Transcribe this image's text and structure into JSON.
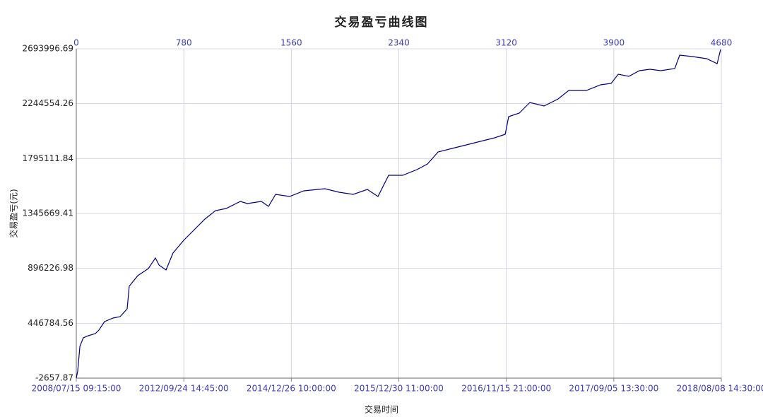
{
  "chart_data": {
    "type": "line",
    "title": "交易盈亏曲线图",
    "x_label": "交易时间",
    "y_label": "交易盈亏(元)",
    "xlim": [
      0,
      4680
    ],
    "xticks": [
      0,
      780,
      1560,
      2340,
      3120,
      3900,
      4680
    ],
    "x2ticks": [
      {
        "value": 0,
        "label": "2008/07/15 09:15:00"
      },
      {
        "value": 780,
        "label": "2012/09/24 14:45:00"
      },
      {
        "value": 1560,
        "label": "2014/12/26 10:00:00"
      },
      {
        "value": 2340,
        "label": "2015/12/30 11:00:00"
      },
      {
        "value": 3120,
        "label": "2016/11/15 21:00:00"
      },
      {
        "value": 3900,
        "label": "2017/09/05 13:30:00"
      },
      {
        "value": 4680,
        "label": "2018/08/08 14:30:00"
      }
    ],
    "ylim": [
      -2657.87,
      2693996.69
    ],
    "yticks": [
      -2657.87,
      446784.56,
      896226.98,
      1345669.41,
      1795111.84,
      2244554.26,
      2693996.69
    ],
    "grid": true,
    "series": [
      {
        "color": "#000080",
        "x": [
          0,
          10,
          26,
          51,
          87,
          138,
          164,
          205,
          267,
          318,
          369,
          384,
          446,
          523,
          574,
          600,
          651,
          702,
          779,
          856,
          933,
          1010,
          1087,
          1190,
          1241,
          1343,
          1395,
          1446,
          1548,
          1651,
          1804,
          1907,
          2009,
          2112,
          2189,
          2266,
          2368,
          2471,
          2548,
          2625,
          2727,
          2830,
          2932,
          3035,
          3112,
          3137,
          3214,
          3291,
          3394,
          3496,
          3573,
          3701,
          3804,
          3881,
          3932,
          4009,
          4086,
          4163,
          4240,
          4342,
          4378,
          4470,
          4573,
          4650,
          4675
        ],
        "values": [
          -2658,
          55212,
          257757,
          327201,
          344562,
          361923,
          390858,
          460302,
          489237,
          500811,
          564468,
          749652,
          836457,
          894327,
          981132,
          923262,
          882753,
          1021641,
          1125807,
          1212612,
          1299417,
          1368861,
          1386222,
          1444092,
          1426731,
          1444092,
          1403583,
          1501962,
          1484601,
          1530897,
          1548258,
          1519323,
          1501962,
          1542471,
          1484601,
          1658211,
          1658211,
          1704507,
          1750803,
          1849182,
          1878117,
          1907052,
          1935987,
          1964922,
          1993857,
          2138532,
          2167467,
          2254272,
          2225337,
          2283207,
          2352651,
          2352651,
          2398947,
          2410521,
          2485752,
          2468391,
          2514687,
          2526261,
          2514687,
          2532048,
          2641998,
          2630424,
          2613063,
          2572554,
          2688209
        ]
      }
    ]
  }
}
